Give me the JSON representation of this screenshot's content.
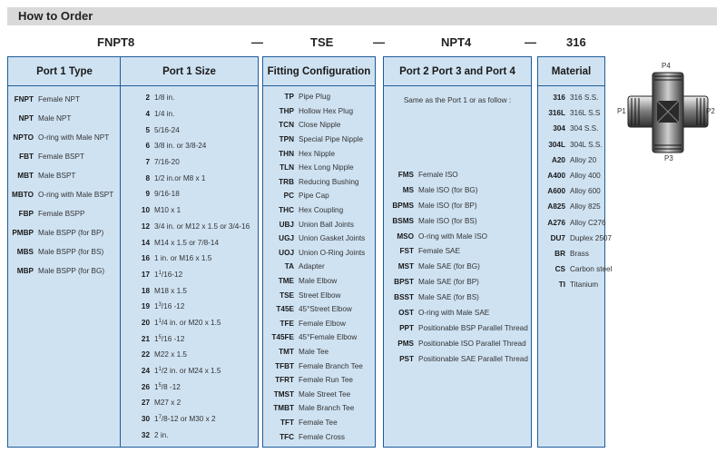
{
  "header": {
    "title": "How to Order"
  },
  "codes": {
    "c1": "FNPT8",
    "d1": "—",
    "c2": "TSE",
    "d2": "—",
    "c3": "NPT4",
    "d3": "—",
    "c4": "316"
  },
  "port1_type": {
    "title": "Port 1 Type",
    "items": [
      {
        "code": "FNPT",
        "desc": "Female NPT"
      },
      {
        "code": "NPT",
        "desc": "Male NPT"
      },
      {
        "code": "NPTO",
        "desc": "O-ring with Male NPT"
      },
      {
        "code": "FBT",
        "desc": "Female BSPT"
      },
      {
        "code": "MBT",
        "desc": "Male BSPT"
      },
      {
        "code": "MBTO",
        "desc": "O-ring with Male BSPT"
      },
      {
        "code": "FBP",
        "desc": "Female BSPP"
      },
      {
        "code": "PMBP",
        "desc": "Male BSPP (for BP)"
      },
      {
        "code": "MBS",
        "desc": "Male BSPP (for BS)"
      },
      {
        "code": "MBP",
        "desc": "Male BSPP (for BG)"
      }
    ]
  },
  "port1_size": {
    "title": "Port 1 Size",
    "items": [
      {
        "code": "2",
        "desc": "1/8 in."
      },
      {
        "code": "4",
        "desc": "1/4 in."
      },
      {
        "code": "5",
        "desc": "5/16-24"
      },
      {
        "code": "6",
        "desc": "3/8 in. or 3/8-24"
      },
      {
        "code": "7",
        "desc": "7/16-20"
      },
      {
        "code": "8",
        "desc": "1/2 in.or M8 x 1"
      },
      {
        "code": "9",
        "desc": "9/16-18"
      },
      {
        "code": "10",
        "desc": "M10 x 1"
      },
      {
        "code": "12",
        "desc": "3/4 in. or M12 x 1.5 or 3/4-16"
      },
      {
        "code": "14",
        "desc": "M14 x 1.5 or 7/8-14"
      },
      {
        "code": "16",
        "desc": "1 in. or M16 x 1.5"
      },
      {
        "code": "17",
        "desc": "1",
        "sup": "1",
        "tail": "/16-12"
      },
      {
        "code": "18",
        "desc": "M18 x 1.5"
      },
      {
        "code": "19",
        "desc": "1",
        "sup": "3",
        "tail": "/16 -12"
      },
      {
        "code": "20",
        "desc": "1",
        "sup": "1",
        "tail": "/4 in. or M20 x 1.5"
      },
      {
        "code": "21",
        "desc": "1",
        "sup": "5",
        "tail": "/16 -12"
      },
      {
        "code": "22",
        "desc": "M22 x 1.5"
      },
      {
        "code": "24",
        "desc": "1",
        "sup": "1",
        "tail": "/2 in. or M24 x 1.5"
      },
      {
        "code": "26",
        "desc": "1",
        "sup": "5",
        "tail": "/8 -12"
      },
      {
        "code": "27",
        "desc": "M27 x 2"
      },
      {
        "code": "30",
        "desc": "1",
        "sup": "7",
        "tail": "/8-12 or M30 x 2"
      },
      {
        "code": "32",
        "desc": "2 in."
      }
    ]
  },
  "fitting_config": {
    "title": "Fitting Configuration",
    "items": [
      {
        "code": "TP",
        "desc": "Pipe Plug"
      },
      {
        "code": "THP",
        "desc": "Hollow Hex Plug"
      },
      {
        "code": "TCN",
        "desc": "Close Nipple"
      },
      {
        "code": "TPN",
        "desc": "Special Pipe Nipple"
      },
      {
        "code": "THN",
        "desc": "Hex Nipple"
      },
      {
        "code": "TLN",
        "desc": "Hex Long Nipple"
      },
      {
        "code": "TRB",
        "desc": "Reducing Bushing"
      },
      {
        "code": "PC",
        "desc": "Pipe Cap"
      },
      {
        "code": "THC",
        "desc": "Hex Coupling"
      },
      {
        "code": "UBJ",
        "desc": "Union Ball Joints"
      },
      {
        "code": "UGJ",
        "desc": "Union Gasket Joints"
      },
      {
        "code": "UOJ",
        "desc": "Union O-Ring Joints"
      },
      {
        "code": "TA",
        "desc": "Adapter"
      },
      {
        "code": "TME",
        "desc": "Male Elbow"
      },
      {
        "code": "TSE",
        "desc": "Street Elbow"
      },
      {
        "code": "T45E",
        "desc": "45°Street Elbow"
      },
      {
        "code": "TFE",
        "desc": "Female Elbow"
      },
      {
        "code": "T45FE",
        "desc": "45°Female Elbow"
      },
      {
        "code": "TMT",
        "desc": "Male Tee"
      },
      {
        "code": "TFBT",
        "desc": "Female Branch Tee"
      },
      {
        "code": "TFRT",
        "desc": "Female Run Tee"
      },
      {
        "code": "TMST",
        "desc": "Male Street Tee"
      },
      {
        "code": "TMBT",
        "desc": "Male Branch Tee"
      },
      {
        "code": "TFT",
        "desc": "Female  Tee"
      },
      {
        "code": "TFC",
        "desc": "Female  Cross"
      }
    ]
  },
  "port234": {
    "title": "Port 2  Port 3 and Port 4",
    "intro": "Same as the Port 1 or as follow :",
    "items": [
      {
        "code": "FMS",
        "desc": "Female ISO"
      },
      {
        "code": "MS",
        "desc": "Male ISO (for BG)"
      },
      {
        "code": "BPMS",
        "desc": "Male ISO (for BP)"
      },
      {
        "code": "BSMS",
        "desc": "Male ISO (for BS)"
      },
      {
        "code": "MSO",
        "desc": "O-ring with Male ISO"
      },
      {
        "code": "FST",
        "desc": "Female SAE"
      },
      {
        "code": "MST",
        "desc": "Male SAE (for BG)"
      },
      {
        "code": "BPST",
        "desc": "Male SAE (for BP)"
      },
      {
        "code": "BSST",
        "desc": "Male SAE (for BS)"
      },
      {
        "code": "OST",
        "desc": "O-ring with Male SAE"
      },
      {
        "code": "PPT",
        "desc": "Positionable BSP Parallel Thread"
      },
      {
        "code": "PMS",
        "desc": "Positionable ISO Parallel Thread"
      },
      {
        "code": "PST",
        "desc": "Positionable SAE Parallel Thread"
      }
    ]
  },
  "material": {
    "title": "Material",
    "items": [
      {
        "code": "316",
        "desc": "316 S.S."
      },
      {
        "code": "316L",
        "desc": "316L S.S"
      },
      {
        "code": "304",
        "desc": "304 S.S."
      },
      {
        "code": "304L",
        "desc": "304L S.S."
      },
      {
        "code": "A20",
        "desc": "Alloy 20"
      },
      {
        "code": "A400",
        "desc": "Alloy 400"
      },
      {
        "code": "A600",
        "desc": "Alloy 600"
      },
      {
        "code": "A825",
        "desc": "Alloy 825"
      },
      {
        "code": "A276",
        "desc": "Alloy C276"
      },
      {
        "code": "DU7",
        "desc": "Duplex 2507"
      },
      {
        "code": "BR",
        "desc": "Brass"
      },
      {
        "code": "CS",
        "desc": "Carbon steel"
      },
      {
        "code": "TI",
        "desc": "Titanium"
      }
    ]
  },
  "diagram": {
    "p1": "P1",
    "p2": "P2",
    "p3": "P3",
    "p4": "P4"
  },
  "colors": {
    "column_bg": "#cfe2f2",
    "border": "#1f5c99",
    "header_bar": "#d9d9d9"
  }
}
